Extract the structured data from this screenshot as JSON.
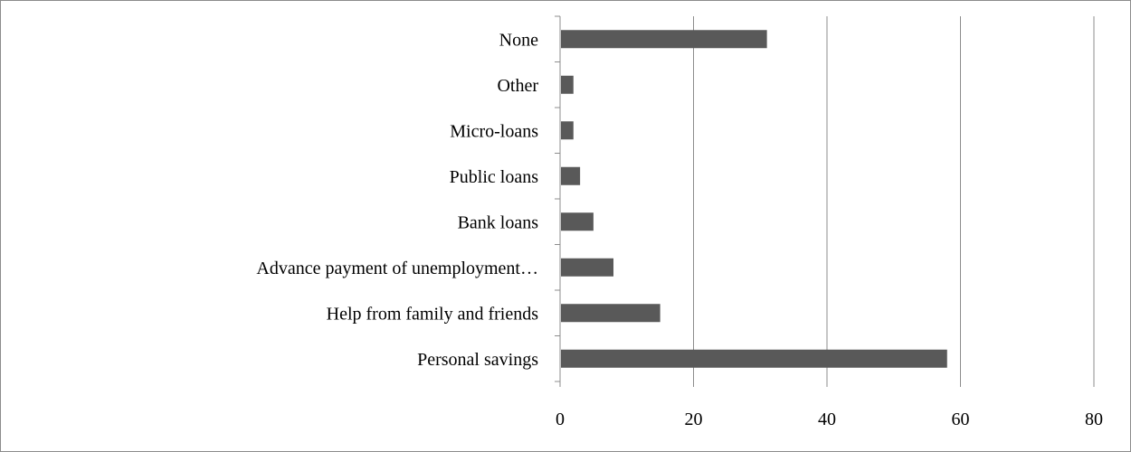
{
  "chart_data": {
    "type": "bar",
    "orientation": "horizontal",
    "categories": [
      "None",
      "Other",
      "Micro-loans",
      "Public loans",
      "Bank loans",
      "Advance payment of unemployment…",
      "Help from family and friends",
      "Personal savings"
    ],
    "values": [
      31,
      2,
      2,
      3,
      5,
      8,
      15,
      58
    ],
    "xlim": [
      0,
      80
    ],
    "xticks": [
      0,
      20,
      40,
      60,
      80
    ],
    "title": "",
    "xlabel": "",
    "ylabel": "",
    "grid": "vertical",
    "legend": "none",
    "colors": {
      "bar": "#595959",
      "grid": "#8c8c8c",
      "axis": "#8c8c8c",
      "text": "#000000"
    }
  }
}
